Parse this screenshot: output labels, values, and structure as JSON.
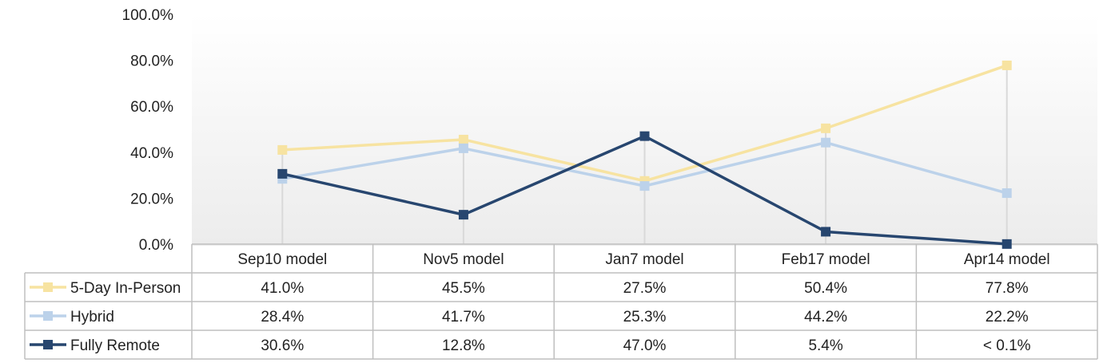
{
  "chart_data": {
    "type": "line",
    "title": "",
    "xlabel": "",
    "ylabel": "",
    "ylim": [
      0,
      100
    ],
    "y_ticks": [
      "0.0%",
      "20.0%",
      "40.0%",
      "60.0%",
      "80.0%",
      "100.0%"
    ],
    "y_tick_values": [
      0,
      20,
      40,
      60,
      80,
      100
    ],
    "categories": [
      "Sep10 model",
      "Nov5 model",
      "Jan7 model",
      "Feb17 model",
      "Apr14 model"
    ],
    "legend_placement": "data-table",
    "grid": "vertical drop lines",
    "marker": "square",
    "series": [
      {
        "name": "5-Day In-Person",
        "color": "#f7e3a1",
        "values": [
          41.0,
          45.5,
          27.5,
          50.4,
          77.8
        ],
        "labels": [
          "41.0%",
          "45.5%",
          "27.5%",
          "50.4%",
          "77.8%"
        ]
      },
      {
        "name": "Hybrid",
        "color": "#bcd2ea",
        "values": [
          28.4,
          41.7,
          25.3,
          44.2,
          22.2
        ],
        "labels": [
          "28.4%",
          "41.7%",
          "25.3%",
          "44.2%",
          "22.2%"
        ]
      },
      {
        "name": "Fully Remote",
        "color": "#27466f",
        "values": [
          30.6,
          12.8,
          47.0,
          5.4,
          0.05
        ],
        "labels": [
          "30.6%",
          "12.8%",
          "47.0%",
          "5.4%",
          "< 0.1%"
        ]
      }
    ]
  }
}
